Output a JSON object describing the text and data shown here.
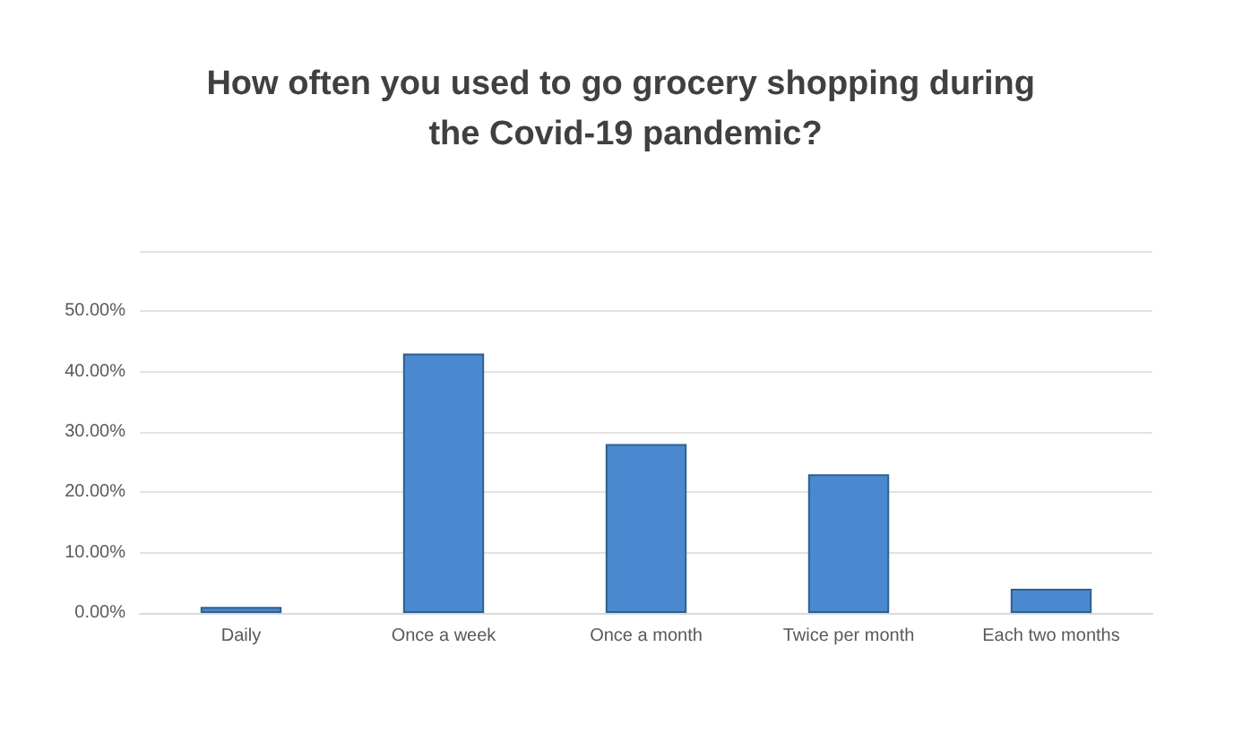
{
  "chart_data": {
    "type": "bar",
    "title": "How often you used to go grocery shopping during the Covid-19 pandemic?",
    "categories": [
      "Daily",
      "Once a week",
      "Once a month",
      "Twice per month",
      "Each two months"
    ],
    "values": [
      1,
      43,
      28,
      23,
      4
    ],
    "color": "#4a89cf",
    "ylim": [
      0,
      60
    ],
    "yticks": [
      {
        "value": 0,
        "label": "0.00%"
      },
      {
        "value": 10,
        "label": "10.00%"
      },
      {
        "value": 20,
        "label": "20.00%"
      },
      {
        "value": 30,
        "label": "30.00%"
      },
      {
        "value": 40,
        "label": "40.00%"
      },
      {
        "value": 50,
        "label": "50.00%"
      },
      {
        "value": 60,
        "label": null
      }
    ],
    "grid": true
  }
}
